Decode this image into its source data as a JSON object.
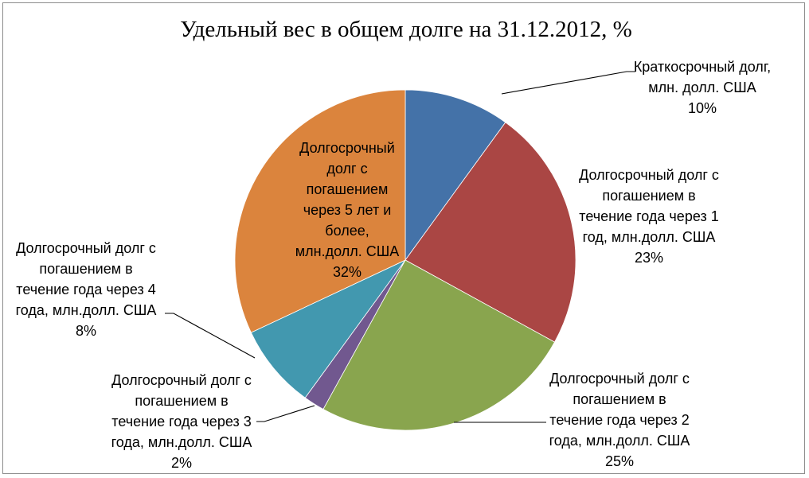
{
  "chart_data": {
    "type": "pie",
    "title": "Удельный вес в общем долге на 31.12.2012, %",
    "slices": [
      {
        "lines": [
          "Краткосрочный долг,",
          "млн. долл. США",
          "10%"
        ],
        "value": 10,
        "color": "#4472A8"
      },
      {
        "lines": [
          "Долгосрочный долг с",
          "погашением в",
          "течение года через 1",
          "год, млн.долл. США",
          "23%"
        ],
        "value": 23,
        "color": "#AA4644"
      },
      {
        "lines": [
          "Долгосрочный долг с",
          "погашением в",
          "течение года через 2",
          "года, млн.долл. США",
          "25%"
        ],
        "value": 25,
        "color": "#89A54E"
      },
      {
        "lines": [
          "Долгосрочный долг с",
          "погашением в",
          "течение года через 3",
          "года, млн.долл. США",
          "2%"
        ],
        "value": 2,
        "color": "#71588F"
      },
      {
        "lines": [
          "Долгосрочный долг с",
          "погашением в",
          "течение года через 4",
          "года, млн.долл. США",
          "8%"
        ],
        "value": 8,
        "color": "#4298AF"
      },
      {
        "lines": [
          "Долгосрочный",
          "долг с",
          "погашением",
          "через 5 лет и",
          "более,",
          "млн.долл. США",
          "32%"
        ],
        "value": 32,
        "color": "#DB843D"
      }
    ],
    "legend": "none"
  }
}
